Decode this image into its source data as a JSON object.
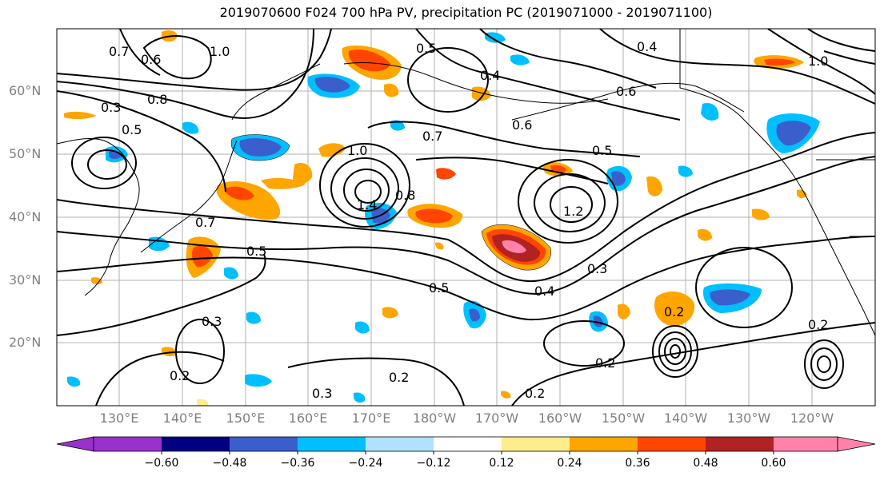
{
  "title": "2019070600 F024 700 hPa PV, precipitation PC (2019071000 - 2019071100)",
  "map": {
    "lat_labels": [
      "60°N",
      "50°N",
      "40°N",
      "30°N",
      "20°N"
    ],
    "lon_labels": [
      "130°E",
      "140°E",
      "150°E",
      "160°E",
      "170°E",
      "180°W",
      "170°W",
      "160°W",
      "150°W",
      "140°W",
      "130°W",
      "120°W"
    ],
    "contour_labels": [
      "0.7",
      "0.6",
      "1.0",
      "0.5",
      "0.4",
      "0.8",
      "0.3",
      "0.7",
      "0.5",
      "1.0",
      "1.4",
      "0.8",
      "0.7",
      "0.5",
      "0.3",
      "1.2",
      "0.4",
      "0.5",
      "0.2",
      "0.3",
      "0.2",
      "0.2",
      "0.2",
      "0.2",
      "0.2",
      "0.4",
      "0.6",
      "0.6",
      "1.0",
      "0.5",
      "0.3"
    ]
  },
  "colorbar": {
    "ticks": [
      "−0.60",
      "−0.48",
      "−0.36",
      "−0.24",
      "−0.12",
      "0.12",
      "0.24",
      "0.36",
      "0.48",
      "0.60"
    ],
    "colors": [
      "#9932cc",
      "#000080",
      "#3a5fcd",
      "#00bfff",
      "#b0e2ff",
      "#ffffff",
      "#ffec8b",
      "#ffa500",
      "#ff4500",
      "#b22222",
      "#ff82ab"
    ]
  }
}
